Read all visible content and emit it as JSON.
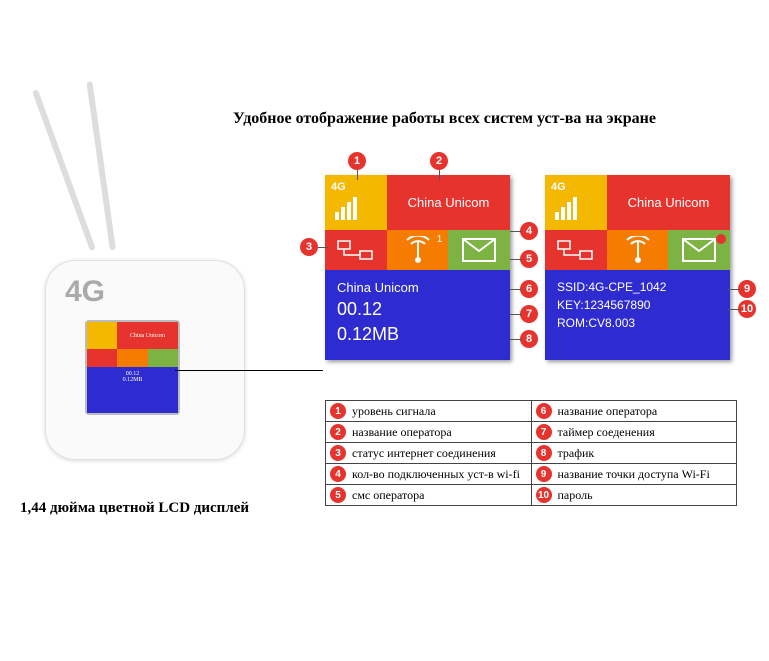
{
  "title": "Удобное отображение работы всех систем уст-ва на экране",
  "caption": "1,44 дюйма цветной LCD дисплей",
  "router": {
    "logo": "4G",
    "mini": {
      "op": "China Unicom"
    }
  },
  "lcdA": {
    "signal_label": "4G",
    "operator": "China Unicom",
    "body_operator": "China Unicom",
    "timer": "00.12",
    "traffic": "0.12MB"
  },
  "lcdB": {
    "signal_label": "4G",
    "operator": "China Unicom",
    "ssid_label": "SSID:",
    "ssid": "4G-CPE_1042",
    "key_label": "KEY:",
    "key": "1234567890",
    "rom_label": "ROM:",
    "rom": "CV8.003"
  },
  "callouts": {
    "c1": "1",
    "c2": "2",
    "c3": "3",
    "c4": "4",
    "c5": "5",
    "c6": "6",
    "c7": "7",
    "c8": "8",
    "c9": "9",
    "c10": "10"
  },
  "legend": [
    {
      "n": "1",
      "t": "уровень сигнала",
      "n2": "6",
      "t2": "название оператора"
    },
    {
      "n": "2",
      "t": "название оператора",
      "n2": "7",
      "t2": "таймер соеденения"
    },
    {
      "n": "3",
      "t": "статус интернет соединения",
      "n2": "8",
      "t2": "трафик"
    },
    {
      "n": "4",
      "t": "кол-во подключенных уст-в wi-fi",
      "n2": "9",
      "t2": "название точки доступа Wi-Fi"
    },
    {
      "n": "5",
      "t": "смс оператора",
      "n2": "10",
      "t2": "пароль"
    }
  ],
  "colors": {
    "blue": "#2e2bd1",
    "red": "#e7332e",
    "yellow": "#f5b800",
    "orange": "#f57c00",
    "green": "#7cb342"
  }
}
